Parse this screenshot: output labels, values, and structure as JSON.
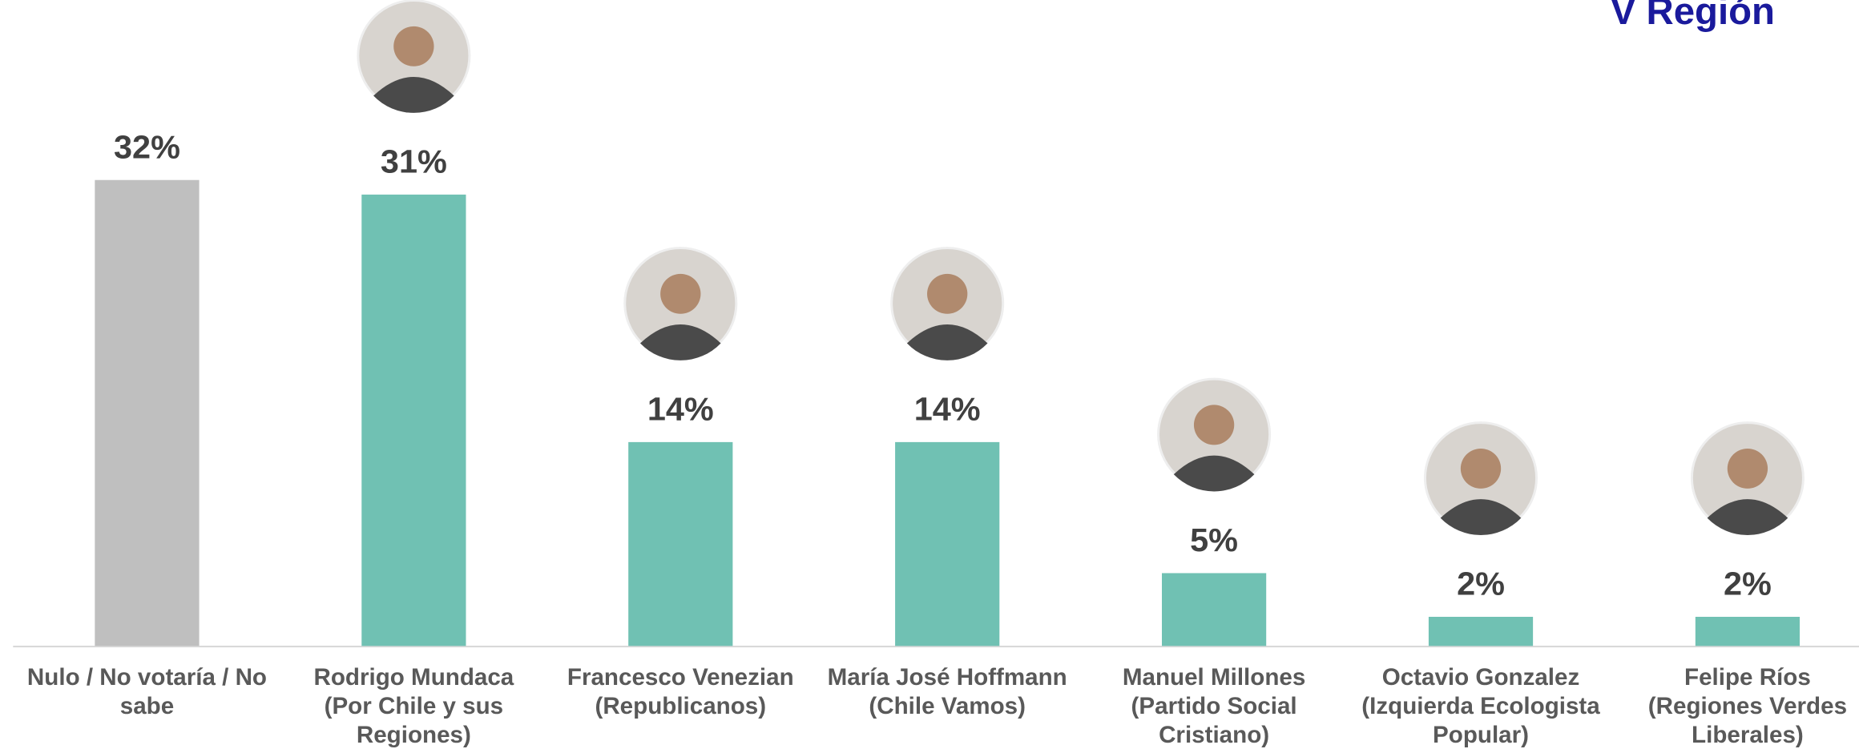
{
  "chart_data": {
    "type": "bar",
    "title": "V Región",
    "categories": [
      [
        "Nulo / No votaría / No",
        "sabe"
      ],
      [
        "Rodrigo Mundaca",
        "(Por Chile y sus",
        "Regiones)"
      ],
      [
        "Francesco Venezian",
        "(Republicanos)"
      ],
      [
        "María José Hoffmann",
        "(Chile Vamos)"
      ],
      [
        "Manuel Millones",
        "(Partido Social",
        "Cristiano)"
      ],
      [
        "Octavio Gonzalez",
        "(Izquierda Ecologista",
        "Popular)"
      ],
      [
        "Felipe Ríos",
        "(Regiones Verdes",
        "Liberales)"
      ]
    ],
    "values": [
      32,
      31,
      14,
      14,
      5,
      2,
      2
    ],
    "value_labels": [
      "32%",
      "31%",
      "14%",
      "14%",
      "5%",
      "2%",
      "2%"
    ],
    "colors": [
      "#bfbfbf",
      "#70c1b3",
      "#70c1b3",
      "#70c1b3",
      "#70c1b3",
      "#70c1b3",
      "#70c1b3"
    ],
    "ylim": [
      0,
      32
    ]
  }
}
